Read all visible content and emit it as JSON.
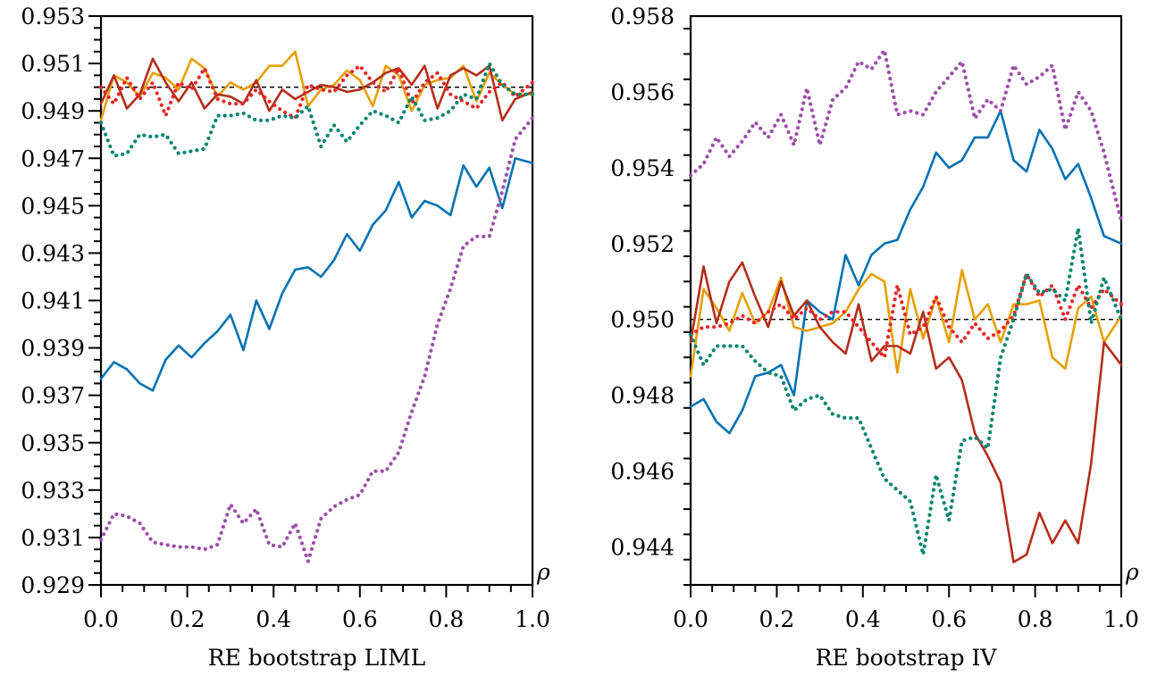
{
  "chart_data": [
    {
      "type": "line",
      "title": "",
      "xlabel": "RE bootstrap LIML",
      "ylabel": "",
      "axis_symbol": "ρ",
      "xlim": [
        0.0,
        1.0
      ],
      "ylim": [
        0.929,
        0.953
      ],
      "xticks": [
        "0.0",
        "0.2",
        "0.4",
        "0.6",
        "0.8",
        "1.0"
      ],
      "yticks": [
        "0.929",
        "0.931",
        "0.933",
        "0.935",
        "0.937",
        "0.939",
        "0.941",
        "0.943",
        "0.945",
        "0.947",
        "0.949",
        "0.951",
        "0.953"
      ],
      "reference_line": 0.95,
      "grid": false,
      "legend": "none",
      "series": [
        {
          "color": "#0072B2",
          "style": "solid",
          "x": [
            0.0,
            0.03,
            0.06,
            0.09,
            0.12,
            0.15,
            0.18,
            0.21,
            0.24,
            0.27,
            0.3,
            0.33,
            0.36,
            0.39,
            0.42,
            0.45,
            0.48,
            0.51,
            0.54,
            0.57,
            0.6,
            0.63,
            0.66,
            0.69,
            0.72,
            0.75,
            0.78,
            0.81,
            0.84,
            0.87,
            0.9,
            0.93,
            0.96,
            1.0
          ],
          "y": [
            0.9377,
            0.9384,
            0.9381,
            0.9375,
            0.9372,
            0.9385,
            0.9391,
            0.9386,
            0.9392,
            0.9397,
            0.9404,
            0.9389,
            0.941,
            0.9398,
            0.9413,
            0.9423,
            0.9424,
            0.942,
            0.9427,
            0.9438,
            0.9431,
            0.9442,
            0.9448,
            0.946,
            0.9445,
            0.9452,
            0.945,
            0.9446,
            0.9467,
            0.9458,
            0.9466,
            0.9449,
            0.947,
            0.9468
          ]
        },
        {
          "color": "#E69F00",
          "style": "solid",
          "x": [
            0.0,
            0.03,
            0.06,
            0.09,
            0.12,
            0.15,
            0.18,
            0.21,
            0.24,
            0.27,
            0.3,
            0.33,
            0.36,
            0.39,
            0.42,
            0.45,
            0.48,
            0.51,
            0.54,
            0.57,
            0.6,
            0.63,
            0.66,
            0.69,
            0.72,
            0.75,
            0.78,
            0.81,
            0.84,
            0.87,
            0.9,
            0.93,
            0.96,
            1.0
          ],
          "y": [
            0.9486,
            0.9505,
            0.9502,
            0.9496,
            0.9506,
            0.9504,
            0.9499,
            0.9512,
            0.9508,
            0.9496,
            0.9502,
            0.9499,
            0.9502,
            0.9509,
            0.9509,
            0.9515,
            0.9492,
            0.9499,
            0.9501,
            0.9507,
            0.9503,
            0.9492,
            0.9509,
            0.9505,
            0.949,
            0.9501,
            0.9503,
            0.9504,
            0.9509,
            0.9494,
            0.9506,
            0.9501,
            0.9497,
            0.9497
          ]
        },
        {
          "color": "#B22E1A",
          "style": "solid",
          "x": [
            0.0,
            0.03,
            0.06,
            0.09,
            0.12,
            0.15,
            0.18,
            0.21,
            0.24,
            0.27,
            0.3,
            0.33,
            0.36,
            0.39,
            0.42,
            0.45,
            0.48,
            0.51,
            0.54,
            0.57,
            0.6,
            0.63,
            0.66,
            0.69,
            0.72,
            0.75,
            0.78,
            0.81,
            0.84,
            0.87,
            0.9,
            0.93,
            0.96,
            1.0
          ],
          "y": [
            0.9493,
            0.9505,
            0.9491,
            0.9497,
            0.9512,
            0.9502,
            0.9494,
            0.9502,
            0.9491,
            0.9497,
            0.9496,
            0.9493,
            0.9503,
            0.949,
            0.9499,
            0.9495,
            0.9498,
            0.9501,
            0.95,
            0.9498,
            0.9499,
            0.9502,
            0.9506,
            0.9508,
            0.9501,
            0.9509,
            0.9491,
            0.9505,
            0.9508,
            0.9505,
            0.9509,
            0.9486,
            0.9495,
            0.9498
          ]
        },
        {
          "color": "#E8262A",
          "style": "dotted",
          "x": [
            0.0,
            0.03,
            0.06,
            0.09,
            0.12,
            0.15,
            0.18,
            0.21,
            0.24,
            0.27,
            0.3,
            0.33,
            0.36,
            0.39,
            0.42,
            0.45,
            0.48,
            0.51,
            0.54,
            0.57,
            0.6,
            0.63,
            0.66,
            0.69,
            0.72,
            0.75,
            0.78,
            0.81,
            0.84,
            0.87,
            0.9,
            0.93,
            0.96,
            1.0
          ],
          "y": [
            0.95,
            0.9493,
            0.9504,
            0.9495,
            0.9502,
            0.9488,
            0.9502,
            0.9499,
            0.9508,
            0.9495,
            0.9493,
            0.9493,
            0.9499,
            0.9494,
            0.949,
            0.9487,
            0.9501,
            0.9499,
            0.9498,
            0.9505,
            0.9509,
            0.9502,
            0.9498,
            0.9508,
            0.9493,
            0.9502,
            0.9506,
            0.9497,
            0.9494,
            0.9491,
            0.9498,
            0.9502,
            0.9496,
            0.9502
          ]
        },
        {
          "color": "#00856F",
          "style": "dotted",
          "x": [
            0.0,
            0.03,
            0.06,
            0.09,
            0.12,
            0.15,
            0.18,
            0.21,
            0.24,
            0.27,
            0.3,
            0.33,
            0.36,
            0.39,
            0.42,
            0.45,
            0.48,
            0.51,
            0.54,
            0.57,
            0.6,
            0.63,
            0.66,
            0.69,
            0.72,
            0.75,
            0.78,
            0.81,
            0.84,
            0.87,
            0.9,
            0.93,
            0.96,
            1.0
          ],
          "y": [
            0.9485,
            0.9471,
            0.9472,
            0.948,
            0.9479,
            0.948,
            0.9472,
            0.9473,
            0.9474,
            0.9488,
            0.9488,
            0.9489,
            0.9486,
            0.9486,
            0.9488,
            0.9487,
            0.9492,
            0.9475,
            0.9484,
            0.9477,
            0.9484,
            0.949,
            0.9488,
            0.9485,
            0.9496,
            0.9486,
            0.9487,
            0.949,
            0.9497,
            0.9495,
            0.951,
            0.9501,
            0.9497,
            0.9497
          ]
        },
        {
          "color": "#9B4FA8",
          "style": "dotted",
          "x": [
            0.0,
            0.03,
            0.06,
            0.09,
            0.12,
            0.15,
            0.18,
            0.21,
            0.24,
            0.27,
            0.3,
            0.33,
            0.36,
            0.39,
            0.42,
            0.45,
            0.48,
            0.51,
            0.54,
            0.57,
            0.6,
            0.63,
            0.66,
            0.69,
            0.72,
            0.75,
            0.78,
            0.81,
            0.84,
            0.87,
            0.9,
            0.93,
            0.96,
            1.0
          ],
          "y": [
            0.9309,
            0.932,
            0.9319,
            0.9316,
            0.9308,
            0.9307,
            0.9306,
            0.9306,
            0.9305,
            0.9307,
            0.9324,
            0.9316,
            0.9322,
            0.9307,
            0.9306,
            0.9316,
            0.93,
            0.9318,
            0.9323,
            0.9326,
            0.9328,
            0.9338,
            0.9338,
            0.9346,
            0.9363,
            0.9378,
            0.94,
            0.9415,
            0.9433,
            0.9437,
            0.9437,
            0.9456,
            0.9478,
            0.9487
          ]
        }
      ]
    },
    {
      "type": "line",
      "title": "",
      "xlabel": "RE bootstrap IV",
      "ylabel": "",
      "axis_symbol": "ρ",
      "xlim": [
        0.0,
        1.0
      ],
      "ylim": [
        0.943,
        0.958
      ],
      "xticks": [
        "0.0",
        "0.2",
        "0.4",
        "0.6",
        "0.8",
        "1.0"
      ],
      "yticks": [
        "0.944",
        "0.946",
        "0.948",
        "0.950",
        "0.952",
        "0.954",
        "0.956",
        "0.958"
      ],
      "reference_line": 0.95,
      "grid": false,
      "legend": "none",
      "series": [
        {
          "color": "#0072B2",
          "style": "solid",
          "x": [
            0.0,
            0.03,
            0.06,
            0.09,
            0.12,
            0.15,
            0.18,
            0.21,
            0.24,
            0.27,
            0.3,
            0.33,
            0.36,
            0.39,
            0.42,
            0.45,
            0.48,
            0.51,
            0.54,
            0.57,
            0.6,
            0.63,
            0.66,
            0.69,
            0.72,
            0.75,
            0.78,
            0.81,
            0.84,
            0.87,
            0.9,
            0.93,
            0.96,
            1.0
          ],
          "y": [
            0.9477,
            0.9479,
            0.9473,
            0.947,
            0.9476,
            0.9485,
            0.9486,
            0.9488,
            0.948,
            0.9505,
            0.9502,
            0.95,
            0.9517,
            0.9509,
            0.9517,
            0.952,
            0.9521,
            0.9529,
            0.9535,
            0.9544,
            0.954,
            0.9542,
            0.9548,
            0.9548,
            0.9555,
            0.9542,
            0.9539,
            0.955,
            0.9545,
            0.9537,
            0.9541,
            0.9532,
            0.9522,
            0.952
          ]
        },
        {
          "color": "#E69F00",
          "style": "solid",
          "x": [
            0.0,
            0.03,
            0.06,
            0.09,
            0.12,
            0.15,
            0.18,
            0.21,
            0.24,
            0.27,
            0.3,
            0.33,
            0.36,
            0.39,
            0.42,
            0.45,
            0.48,
            0.51,
            0.54,
            0.57,
            0.6,
            0.63,
            0.66,
            0.69,
            0.72,
            0.75,
            0.78,
            0.81,
            0.84,
            0.87,
            0.9,
            0.93,
            0.96,
            1.0
          ],
          "y": [
            0.9485,
            0.9508,
            0.9503,
            0.9497,
            0.9507,
            0.9499,
            0.9502,
            0.9511,
            0.9498,
            0.9497,
            0.9498,
            0.9499,
            0.9502,
            0.9508,
            0.9512,
            0.951,
            0.9486,
            0.9508,
            0.9495,
            0.9506,
            0.9494,
            0.9513,
            0.95,
            0.9504,
            0.9494,
            0.9504,
            0.9504,
            0.9505,
            0.949,
            0.9487,
            0.9503,
            0.9506,
            0.9494,
            0.9501
          ]
        },
        {
          "color": "#B22E1A",
          "style": "solid",
          "x": [
            0.0,
            0.03,
            0.06,
            0.09,
            0.12,
            0.15,
            0.18,
            0.21,
            0.24,
            0.27,
            0.3,
            0.33,
            0.36,
            0.39,
            0.42,
            0.45,
            0.48,
            0.51,
            0.54,
            0.57,
            0.6,
            0.63,
            0.66,
            0.69,
            0.72,
            0.75,
            0.78,
            0.81,
            0.84,
            0.87,
            0.9,
            0.93,
            0.96,
            1.0
          ],
          "y": [
            0.9494,
            0.9514,
            0.9499,
            0.951,
            0.9515,
            0.9506,
            0.9498,
            0.951,
            0.9501,
            0.9505,
            0.9498,
            0.9494,
            0.9491,
            0.9504,
            0.9489,
            0.9493,
            0.9493,
            0.9491,
            0.9502,
            0.9487,
            0.949,
            0.9484,
            0.947,
            0.9464,
            0.9457,
            0.9436,
            0.9438,
            0.9449,
            0.9441,
            0.9447,
            0.9441,
            0.9462,
            0.9494,
            0.9488
          ]
        },
        {
          "color": "#E8262A",
          "style": "dotted",
          "x": [
            0.0,
            0.03,
            0.06,
            0.09,
            0.12,
            0.15,
            0.18,
            0.21,
            0.24,
            0.27,
            0.3,
            0.33,
            0.36,
            0.39,
            0.42,
            0.45,
            0.48,
            0.51,
            0.54,
            0.57,
            0.6,
            0.63,
            0.66,
            0.69,
            0.72,
            0.75,
            0.78,
            0.81,
            0.84,
            0.87,
            0.9,
            0.93,
            0.96,
            1.0
          ],
          "y": [
            0.9496,
            0.9498,
            0.9498,
            0.9499,
            0.9501,
            0.9499,
            0.9502,
            0.9504,
            0.95,
            0.9503,
            0.95,
            0.9502,
            0.9502,
            0.9498,
            0.9494,
            0.949,
            0.9509,
            0.9496,
            0.9498,
            0.9506,
            0.9498,
            0.9494,
            0.9499,
            0.9495,
            0.9497,
            0.9501,
            0.9512,
            0.9506,
            0.9509,
            0.95,
            0.9509,
            0.9503,
            0.9508,
            0.9504
          ]
        },
        {
          "color": "#00856F",
          "style": "dotted",
          "x": [
            0.0,
            0.03,
            0.06,
            0.09,
            0.12,
            0.15,
            0.18,
            0.21,
            0.24,
            0.27,
            0.3,
            0.33,
            0.36,
            0.39,
            0.42,
            0.45,
            0.48,
            0.51,
            0.54,
            0.57,
            0.6,
            0.63,
            0.66,
            0.69,
            0.72,
            0.75,
            0.78,
            0.81,
            0.84,
            0.87,
            0.9,
            0.93,
            0.96,
            1.0
          ],
          "y": [
            0.9496,
            0.9488,
            0.9493,
            0.9493,
            0.9493,
            0.9489,
            0.9486,
            0.9485,
            0.9476,
            0.9479,
            0.948,
            0.9475,
            0.9474,
            0.9474,
            0.9466,
            0.9458,
            0.9455,
            0.9452,
            0.9438,
            0.9459,
            0.9447,
            0.9468,
            0.9469,
            0.9466,
            0.949,
            0.95,
            0.9512,
            0.9507,
            0.9508,
            0.9505,
            0.9524,
            0.9499,
            0.9511,
            0.95
          ]
        },
        {
          "color": "#9B4FA8",
          "style": "dotted",
          "x": [
            0.0,
            0.03,
            0.06,
            0.09,
            0.12,
            0.15,
            0.18,
            0.21,
            0.24,
            0.27,
            0.3,
            0.33,
            0.36,
            0.39,
            0.42,
            0.45,
            0.48,
            0.51,
            0.54,
            0.57,
            0.6,
            0.63,
            0.66,
            0.69,
            0.72,
            0.75,
            0.78,
            0.81,
            0.84,
            0.87,
            0.9,
            0.93,
            0.96,
            1.0
          ],
          "y": [
            0.9538,
            0.9541,
            0.9548,
            0.9543,
            0.9547,
            0.9552,
            0.9548,
            0.9554,
            0.9546,
            0.9561,
            0.9546,
            0.9558,
            0.9561,
            0.9568,
            0.9566,
            0.9571,
            0.9554,
            0.9555,
            0.9554,
            0.956,
            0.9564,
            0.9568,
            0.9553,
            0.9558,
            0.9555,
            0.9567,
            0.9562,
            0.9564,
            0.9567,
            0.955,
            0.956,
            0.9555,
            0.9544,
            0.9526
          ]
        }
      ]
    }
  ]
}
